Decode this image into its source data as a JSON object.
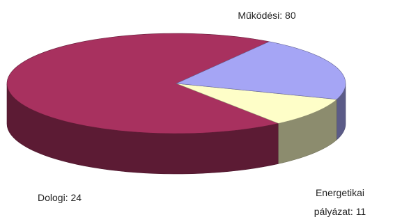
{
  "chart_data": {
    "type": "pie",
    "three_d": true,
    "title": "",
    "slices": [
      {
        "label": "Működési",
        "value": 80,
        "color": "#a8315f",
        "data_label": "Működési: 80"
      },
      {
        "label": "Energetikai pályázat",
        "value": 11,
        "color": "#fefec8",
        "data_label_lines": [
          "Energetikai",
          "pályázat: 11"
        ]
      },
      {
        "label": "Dologi",
        "value": 24,
        "color": "#a5a5f5",
        "data_label": "Dologi: 24"
      }
    ]
  }
}
